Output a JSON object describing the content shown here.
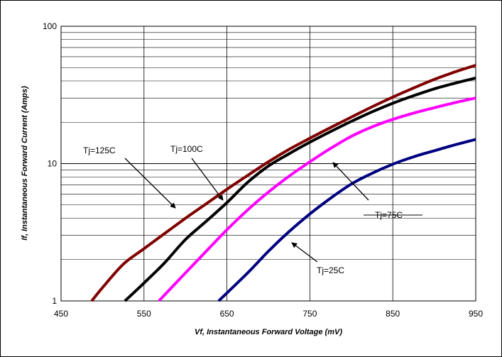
{
  "chart_data": {
    "type": "line",
    "title": "",
    "xlabel": "Vf, Instantaneous Forward  Voltage (mV)",
    "ylabel": "If, Instantaneous Forward Current (Amps)",
    "xlim": [
      450,
      950
    ],
    "ylim": [
      1,
      100
    ],
    "y_scale": "log",
    "x_ticks": [
      "450",
      "550",
      "650",
      "750",
      "850",
      "950"
    ],
    "y_ticks": [
      "1",
      "10",
      "100"
    ],
    "grid": true,
    "legend": "none",
    "series": [
      {
        "name": "Tj=125C",
        "color": "#800000",
        "x": [
          487,
          500,
          525,
          550,
          575,
          600,
          625,
          650,
          675,
          700,
          725,
          750,
          775,
          800,
          825,
          850,
          875,
          900,
          925,
          950
        ],
        "y": [
          1.0,
          1.25,
          1.85,
          2.4,
          3.1,
          4.0,
          5.1,
          6.5,
          8.2,
          10.3,
          12.7,
          15.3,
          18.3,
          21.8,
          25.9,
          30.5,
          35.5,
          41.0,
          46.5,
          52.0
        ]
      },
      {
        "name": "Tj=100C",
        "color": "#000000",
        "x": [
          527,
          550,
          575,
          600,
          625,
          650,
          675,
          700,
          725,
          750,
          775,
          800,
          825,
          850,
          875,
          900,
          925,
          950
        ],
        "y": [
          1.0,
          1.35,
          1.9,
          2.8,
          3.8,
          5.2,
          7.3,
          9.6,
          11.8,
          14.3,
          17.1,
          20.3,
          23.8,
          27.5,
          31.2,
          35.0,
          38.5,
          42.0
        ]
      },
      {
        "name": "Tj=75C",
        "color": "#ff00ff",
        "x": [
          568,
          600,
          625,
          650,
          675,
          700,
          725,
          750,
          775,
          800,
          825,
          850,
          875,
          900,
          925,
          950
        ],
        "y": [
          1.0,
          1.6,
          2.3,
          3.3,
          4.6,
          6.2,
          8.1,
          10.3,
          12.9,
          15.8,
          18.5,
          21.0,
          23.3,
          25.5,
          27.8,
          30.0
        ]
      },
      {
        "name": "Tj=25C",
        "color": "#000080",
        "x": [
          640,
          675,
          700,
          725,
          750,
          775,
          800,
          825,
          850,
          875,
          900,
          925,
          950
        ],
        "y": [
          1.0,
          1.6,
          2.3,
          3.2,
          4.3,
          5.6,
          7.1,
          8.5,
          9.9,
          11.2,
          12.4,
          13.7,
          15.0
        ]
      }
    ],
    "annotations": [
      {
        "text": "Tj=125C",
        "target_x": 605,
        "target_y": 4.1
      },
      {
        "text": "Tj=100C",
        "target_x": 648,
        "target_y": 5.3
      },
      {
        "text": "Tj=75C",
        "target_x": 762,
        "target_y": 10.0
      },
      {
        "text": "Tj=25C",
        "target_x": 751,
        "target_y": 4.1
      }
    ]
  }
}
